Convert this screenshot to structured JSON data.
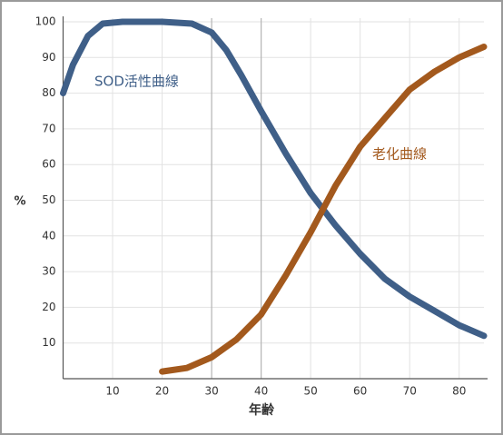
{
  "chart_data": {
    "type": "line",
    "x_label": "年齢",
    "y_label": "%",
    "xlim": [
      0,
      85
    ],
    "xticks": [
      10,
      20,
      30,
      40,
      50,
      60,
      70,
      80
    ],
    "ylim": [
      0,
      100
    ],
    "yticks": [
      10,
      20,
      30,
      40,
      50,
      60,
      70,
      80,
      90,
      100
    ],
    "grid": true,
    "reference_lines": [
      30,
      40
    ],
    "series": [
      {
        "name": "SOD活性曲線",
        "color": "#3f5f88",
        "x": [
          0,
          2,
          5,
          8,
          12,
          20,
          26,
          30,
          33,
          36,
          40,
          45,
          50,
          55,
          60,
          65,
          70,
          75,
          80,
          85
        ],
        "values": [
          80,
          88,
          96,
          99.5,
          100,
          100,
          99.5,
          97,
          92,
          85,
          75,
          63,
          52,
          43,
          35,
          28,
          23,
          19,
          15,
          12
        ]
      },
      {
        "name": "老化曲線",
        "color": "#a3591d",
        "x": [
          20,
          25,
          30,
          35,
          40,
          45,
          50,
          55,
          60,
          65,
          70,
          75,
          80,
          85
        ],
        "values": [
          2,
          3,
          6,
          11,
          18,
          29,
          41,
          54,
          65,
          73,
          81,
          86,
          90,
          93
        ]
      }
    ]
  }
}
